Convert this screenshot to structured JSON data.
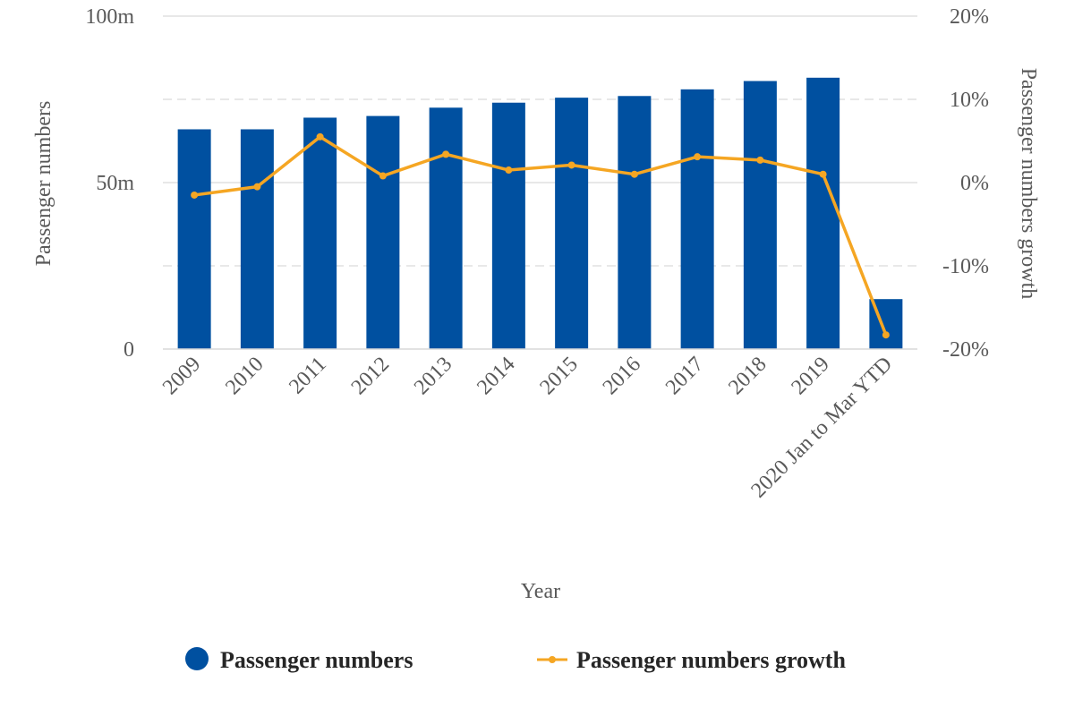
{
  "chart_data": {
    "type": "bar",
    "categories": [
      "2009",
      "2010",
      "2011",
      "2012",
      "2013",
      "2014",
      "2015",
      "2016",
      "2017",
      "2018",
      "2019",
      "2020 Jan to Mar YTD"
    ],
    "series": [
      {
        "name": "Passenger numbers",
        "type": "bar",
        "axis": "left",
        "color": "#0050A0",
        "values": [
          66,
          66,
          69.5,
          70,
          72.5,
          74,
          75.5,
          76,
          78,
          80.5,
          81.5,
          15
        ]
      },
      {
        "name": "Passenger numbers growth",
        "type": "line",
        "axis": "right",
        "color": "#F5A623",
        "values": [
          -1.5,
          -0.5,
          5.5,
          0.8,
          3.4,
          1.5,
          2.1,
          1.0,
          3.1,
          2.7,
          1.0,
          -18.3
        ]
      }
    ],
    "xlabel": "Year",
    "ylabel": "Passenger numbers",
    "y2label": "Passenger numbers growth",
    "ylim": [
      0,
      100
    ],
    "y2lim": [
      -20,
      20
    ],
    "yticks": [
      {
        "value": 0,
        "label": "0"
      },
      {
        "value": 50,
        "label": "50m"
      },
      {
        "value": 100,
        "label": "100m"
      }
    ],
    "y2ticks": [
      {
        "value": -20,
        "label": "-20%"
      },
      {
        "value": -10,
        "label": "-10%"
      },
      {
        "value": 0,
        "label": "0%"
      },
      {
        "value": 10,
        "label": "10%"
      },
      {
        "value": 20,
        "label": "20%"
      }
    ],
    "grid": true,
    "legend_position": "bottom"
  }
}
